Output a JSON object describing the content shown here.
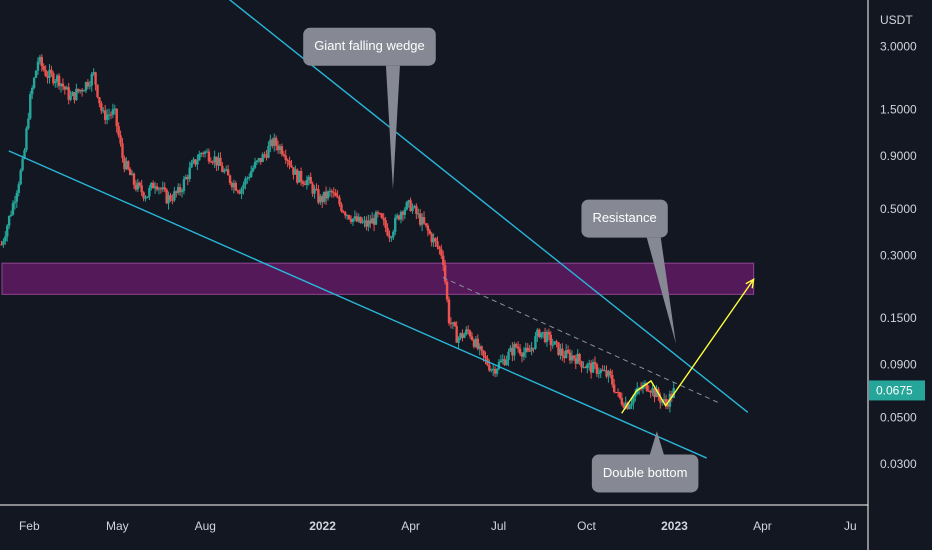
{
  "colors": {
    "background": "#131722",
    "up_candle": "#26a69a",
    "down_candle": "#ef5350",
    "wedge_line": "#29b6d9",
    "resistance_zone": "#5c1a5f",
    "resistance_border": "#9c4ba0",
    "projection": "#ffff3b",
    "callout": "#868993",
    "price_tag": "#26a69a"
  },
  "chart_data": {
    "type": "candlestick",
    "currency_label": "USDT",
    "y_scale": "log",
    "ylim": [
      0.022,
      4.6
    ],
    "y_ticks": [
      {
        "value": 3.0,
        "label": "3.0000"
      },
      {
        "value": 1.5,
        "label": "1.5000"
      },
      {
        "value": 0.9,
        "label": "0.9000"
      },
      {
        "value": 0.5,
        "label": "0.5000"
      },
      {
        "value": 0.3,
        "label": "0.3000"
      },
      {
        "value": 0.15,
        "label": "0.1500"
      },
      {
        "value": 0.09,
        "label": "0.0900"
      },
      {
        "value": 0.05,
        "label": "0.0500"
      },
      {
        "value": 0.03,
        "label": "0.0300"
      }
    ],
    "x_ticks": [
      {
        "month": 1,
        "label": "Feb",
        "bold": false
      },
      {
        "month": 4,
        "label": "May",
        "bold": false
      },
      {
        "month": 7,
        "label": "Aug",
        "bold": false
      },
      {
        "month": 11,
        "label": "2022",
        "bold": true
      },
      {
        "month": 14,
        "label": "Apr",
        "bold": false
      },
      {
        "month": 17,
        "label": "Jul",
        "bold": false
      },
      {
        "month": 20,
        "label": "Oct",
        "bold": false
      },
      {
        "month": 23,
        "label": "2023",
        "bold": true
      },
      {
        "month": 26,
        "label": "Apr",
        "bold": false
      },
      {
        "month": 29,
        "label": "Ju",
        "bold": false
      }
    ],
    "xlim": [
      0,
      29.6
    ],
    "price_path": [
      [
        0.0,
        0.32
      ],
      [
        0.4,
        0.5
      ],
      [
        0.8,
        0.85
      ],
      [
        1.0,
        1.6
      ],
      [
        1.3,
        2.6
      ],
      [
        1.6,
        2.2
      ],
      [
        2.0,
        2.1
      ],
      [
        2.4,
        1.7
      ],
      [
        2.8,
        1.9
      ],
      [
        3.2,
        2.2
      ],
      [
        3.5,
        1.4
      ],
      [
        3.9,
        1.45
      ],
      [
        4.2,
        0.85
      ],
      [
        4.6,
        0.65
      ],
      [
        5.0,
        0.58
      ],
      [
        5.3,
        0.68
      ],
      [
        5.7,
        0.56
      ],
      [
        6.1,
        0.6
      ],
      [
        6.5,
        0.78
      ],
      [
        6.9,
        0.95
      ],
      [
        7.3,
        0.88
      ],
      [
        7.8,
        0.7
      ],
      [
        8.2,
        0.62
      ],
      [
        8.6,
        0.78
      ],
      [
        9.0,
        0.9
      ],
      [
        9.3,
        1.05
      ],
      [
        9.7,
        0.95
      ],
      [
        10.1,
        0.72
      ],
      [
        10.5,
        0.68
      ],
      [
        10.9,
        0.55
      ],
      [
        11.3,
        0.6
      ],
      [
        11.7,
        0.5
      ],
      [
        12.1,
        0.44
      ],
      [
        12.5,
        0.42
      ],
      [
        12.9,
        0.46
      ],
      [
        13.3,
        0.38
      ],
      [
        13.7,
        0.5
      ],
      [
        14.0,
        0.52
      ],
      [
        14.4,
        0.43
      ],
      [
        14.8,
        0.35
      ],
      [
        15.1,
        0.3
      ],
      [
        15.3,
        0.15
      ],
      [
        15.6,
        0.12
      ],
      [
        16.0,
        0.13
      ],
      [
        16.4,
        0.1
      ],
      [
        16.8,
        0.085
      ],
      [
        17.2,
        0.095
      ],
      [
        17.6,
        0.11
      ],
      [
        18.0,
        0.1
      ],
      [
        18.4,
        0.13
      ],
      [
        18.8,
        0.115
      ],
      [
        19.2,
        0.1
      ],
      [
        19.6,
        0.098
      ],
      [
        20.0,
        0.088
      ],
      [
        20.4,
        0.085
      ],
      [
        20.8,
        0.078
      ],
      [
        21.1,
        0.062
      ],
      [
        21.4,
        0.058
      ],
      [
        21.8,
        0.068
      ],
      [
        22.1,
        0.072
      ],
      [
        22.4,
        0.064
      ],
      [
        22.7,
        0.058
      ],
      [
        23.0,
        0.0675
      ]
    ],
    "current_price": {
      "value": 0.0675,
      "label": "0.0675"
    },
    "resistance_zone": {
      "low": 0.195,
      "high": 0.275
    },
    "wedge_upper": [
      [
        3.6,
        15.0
      ],
      [
        25.5,
        0.053
      ]
    ],
    "wedge_lower": [
      [
        0.3,
        0.95
      ],
      [
        24.1,
        0.032
      ]
    ],
    "dashed_resistance": [
      [
        15.1,
        0.235
      ],
      [
        24.5,
        0.059
      ]
    ],
    "projection_path": [
      [
        21.2,
        0.0525
      ],
      [
        21.7,
        0.067
      ],
      [
        22.2,
        0.075
      ],
      [
        22.7,
        0.057
      ],
      [
        25.7,
        0.23
      ]
    ],
    "annotations": [
      {
        "text": "Giant falling wedge",
        "x": 12.6,
        "y": 3.0,
        "tip_x": 13.4,
        "tip_y": 0.62
      },
      {
        "text": "Resistance",
        "x": 21.3,
        "y": 0.45,
        "tip_x": 23.05,
        "tip_y": 0.113
      },
      {
        "text": "Double bottom",
        "x": 22.0,
        "y": 0.027,
        "tip_x": 22.4,
        "tip_y": 0.043
      }
    ]
  }
}
